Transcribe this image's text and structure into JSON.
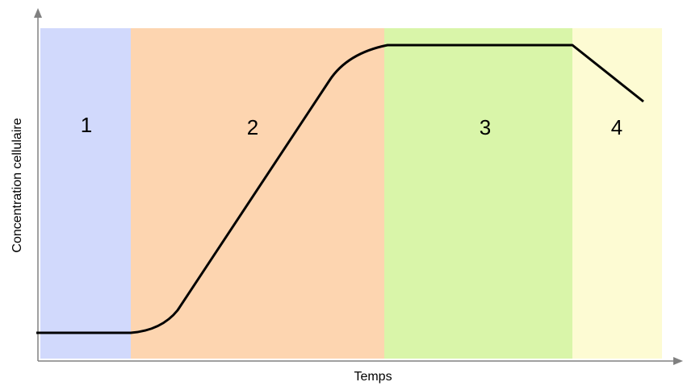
{
  "phases": [
    {
      "label": "1"
    },
    {
      "label": "2"
    },
    {
      "label": "3"
    },
    {
      "label": "4"
    }
  ],
  "x_axis": {
    "label": "Temps"
  },
  "y_axis": {
    "label": "Concentration cellulaire"
  }
}
